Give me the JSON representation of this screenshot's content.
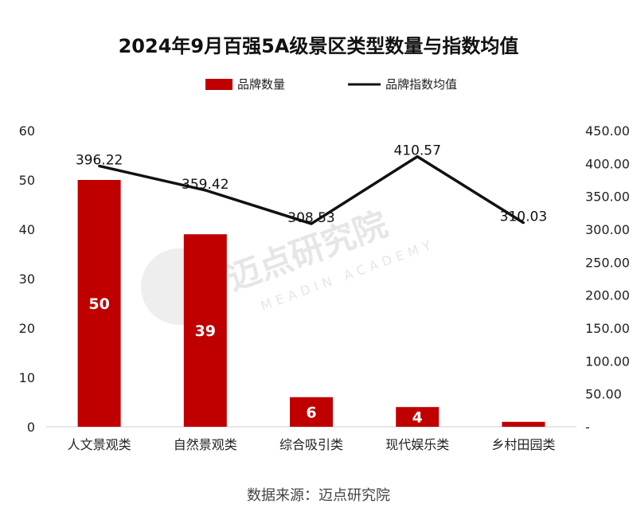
{
  "chart_data": {
    "type": "bar",
    "title": "2024年9月百强5A级景区类型数量与指数均值",
    "categories": [
      "人文景观类",
      "自然景观类",
      "综合吸引类",
      "现代娱乐类",
      "乡村田园类"
    ],
    "series": [
      {
        "name": "品牌数量",
        "type": "bar",
        "axis": "left",
        "color": "#c00000",
        "values": [
          50,
          39,
          6,
          4,
          1
        ],
        "data_labels": [
          "50",
          "39",
          "6",
          "4",
          ""
        ]
      },
      {
        "name": "品牌指数均值",
        "type": "line",
        "axis": "right",
        "color": "#111111",
        "values": [
          396.22,
          359.42,
          308.53,
          410.57,
          310.03
        ],
        "data_labels": [
          "396.22",
          "359.42",
          "308.53",
          "410.57",
          "310.03"
        ]
      }
    ],
    "y_left": {
      "min": 0,
      "max": 60,
      "ticks": [
        "0",
        "10",
        "20",
        "30",
        "40",
        "50",
        "60"
      ]
    },
    "y_right": {
      "min": 0,
      "max": 450,
      "ticks": [
        "-",
        "50.00",
        "100.00",
        "150.00",
        "200.00",
        "250.00",
        "300.00",
        "350.00",
        "400.00",
        "450.00"
      ]
    },
    "legend_position": "top-center",
    "grid": false
  },
  "watermark": {
    "text": "迈点研究院",
    "sub": "MEADIN ACADEMY"
  },
  "source": "数据来源：迈点研究院"
}
